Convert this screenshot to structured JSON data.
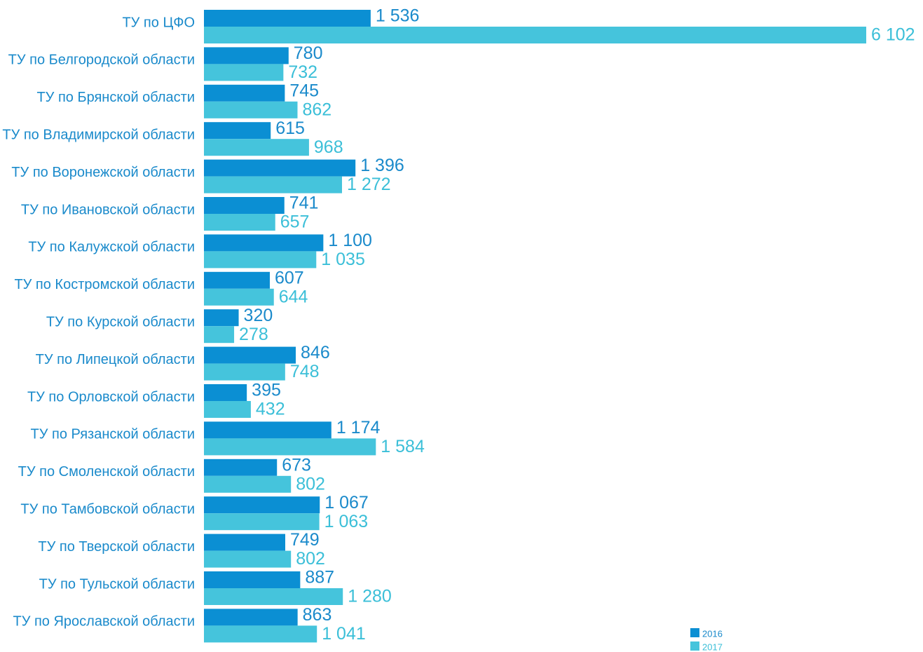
{
  "chart_data": {
    "type": "barh",
    "categories": [
      "ТУ по ЦФО",
      "ТУ по Белгородской области",
      "ТУ по Брянской области",
      "ТУ по Владимирской области",
      "ТУ по Воронежской области",
      "ТУ по Ивановской области",
      "ТУ по Калужской области",
      "ТУ по Костромской области",
      "ТУ по Курской области",
      "ТУ по Липецкой области",
      "ТУ по Орловской области",
      "ТУ по Рязанской области",
      "ТУ по Смоленской области",
      "ТУ по Тамбовской области",
      "ТУ по Тверской области",
      "ТУ по Тульской области",
      "ТУ по Ярославской области"
    ],
    "series": [
      {
        "name": "2016",
        "color": "#0b8fd3",
        "values": [
          1536,
          780,
          745,
          615,
          1396,
          741,
          1100,
          607,
          320,
          846,
          395,
          1174,
          673,
          1067,
          749,
          887,
          863
        ],
        "value_labels": [
          "1 536",
          "780",
          "745",
          "615",
          "1 396",
          "741",
          "1 100",
          "607",
          "320",
          "846",
          "395",
          "1 174",
          "673",
          "1 067",
          "749",
          "887",
          "863"
        ]
      },
      {
        "name": "2017",
        "color": "#45c4dc",
        "values": [
          6102,
          732,
          862,
          968,
          1272,
          657,
          1035,
          644,
          278,
          748,
          432,
          1584,
          802,
          1063,
          802,
          1280,
          1041
        ],
        "value_labels": [
          "6 102",
          "732",
          "862",
          "968",
          "1 272",
          "657",
          "1 035",
          "644",
          "278",
          "748",
          "432",
          "1 584",
          "802",
          "1 063",
          "802",
          "1 280",
          "1 041"
        ]
      }
    ],
    "legend": "bottom-right"
  }
}
